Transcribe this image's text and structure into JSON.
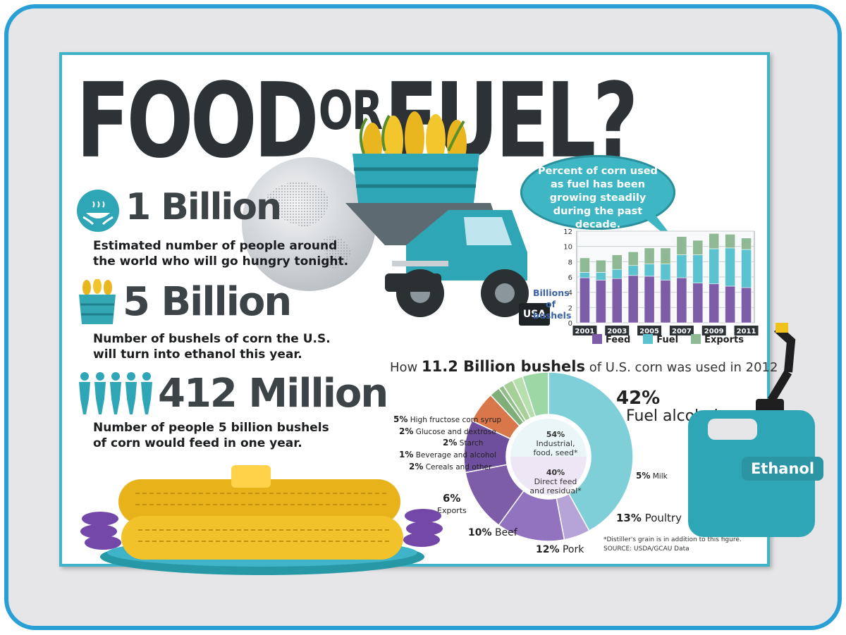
{
  "title": {
    "left": "FOOD",
    "or": "OR",
    "right": "FUEL?"
  },
  "stats": [
    {
      "icon": "hands-bowl-icon",
      "value": "1 Billion",
      "desc_line1": "Estimated number of people around",
      "desc_line2": "the world who will go hungry tonight."
    },
    {
      "icon": "corn-basket-icon",
      "value": "5 Billion",
      "desc_line1": "Number of bushels of corn the U.S.",
      "desc_line2": "will turn into ethanol this year."
    },
    {
      "icon": "people-chain-icon",
      "value": "412 Million",
      "desc_line1": "Number of people 5 billion bushels",
      "desc_line2": "of corn would feed in one year."
    }
  ],
  "truck": {
    "badge": "USA"
  },
  "callout": {
    "text": "Percent of corn used as fuel has been growing steadily during the past decade."
  },
  "colors": {
    "feed": "#7d5ca8",
    "fuel": "#5bc2cf",
    "exports": "#8fb995",
    "accent": "#3fb3c7",
    "dark_text": "#2d3236"
  },
  "chart_data": [
    {
      "type": "bar",
      "stacked": true,
      "ylabel": "Billions of bushels",
      "ylim": [
        0,
        12
      ],
      "y_ticks": [
        "0",
        "2",
        "4",
        "6",
        "8",
        "10",
        "12"
      ],
      "grid": true,
      "legend_position": "bottom",
      "categories": [
        "2001",
        "2002",
        "2003",
        "2004",
        "2005",
        "2006",
        "2007",
        "2008",
        "2009",
        "2010",
        "2011"
      ],
      "x_tick_labels": [
        "2001",
        "2003",
        "2005",
        "2007",
        "2009",
        "2011"
      ],
      "series": [
        {
          "name": "Feed",
          "color": "#7d5ca8",
          "values": [
            5.9,
            5.6,
            5.8,
            6.2,
            6.1,
            5.6,
            5.9,
            5.2,
            5.1,
            4.8,
            4.6
          ]
        },
        {
          "name": "Fuel",
          "color": "#5bc2cf",
          "values": [
            0.7,
            1.0,
            1.2,
            1.3,
            1.6,
            2.1,
            3.0,
            3.7,
            4.6,
            5.0,
            5.0
          ]
        },
        {
          "name": "Exports",
          "color": "#8fb995",
          "values": [
            1.9,
            1.6,
            1.9,
            1.8,
            2.1,
            2.1,
            2.4,
            1.9,
            2.0,
            1.8,
            1.5
          ]
        }
      ]
    },
    {
      "type": "pie",
      "title_pre": "How ",
      "title_bold": "11.2 Billion bushels",
      "title_post": " of U.S. corn was used in 2012",
      "slices": [
        {
          "label": "Fuel alcohol",
          "pct_label": "42%",
          "value": 42
        },
        {
          "label": "High fructose corn syrup",
          "pct_label": "5%",
          "value": 5
        },
        {
          "label": "Glucose and dextrose",
          "pct_label": "2%",
          "value": 2
        },
        {
          "label": "Starch",
          "pct_label": "2%",
          "value": 2
        },
        {
          "label": "Beverage and alcohol",
          "pct_label": "1%",
          "value": 1
        },
        {
          "label": "Cereals and other",
          "pct_label": "2%",
          "value": 2
        },
        {
          "label": "Exports",
          "pct_label": "6%",
          "value": 6
        },
        {
          "label": "Beef",
          "pct_label": "10%",
          "value": 10
        },
        {
          "label": "Pork",
          "pct_label": "12%",
          "value": 12
        },
        {
          "label": "Poultry",
          "pct_label": "13%",
          "value": 13
        },
        {
          "label": "Milk",
          "pct_label": "5%",
          "value": 5
        }
      ],
      "groups": [
        {
          "pct_label": "54%",
          "line1": "Industrial,",
          "line2": "food, seed*"
        },
        {
          "pct_label": "40%",
          "line1": "Direct feed",
          "line2": "and residual*"
        }
      ],
      "footnote": "*Distiller's grain is in addition to this figure.",
      "source": "SOURCE: USDA/GCAU Data"
    }
  ],
  "gas_can": {
    "label": "Ethanol"
  }
}
